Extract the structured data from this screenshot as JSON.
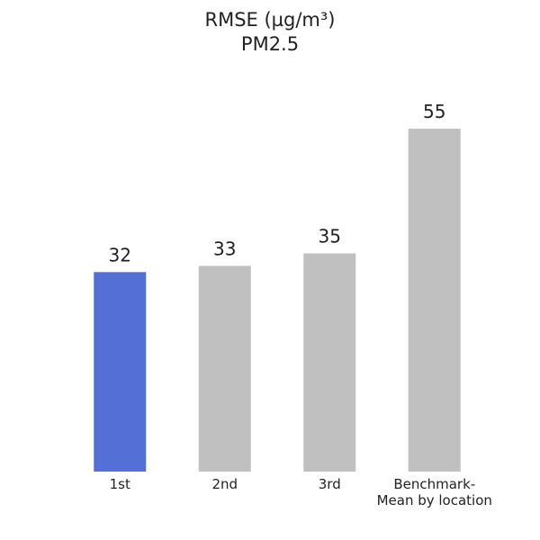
{
  "chart_data": {
    "type": "bar",
    "title": "RMSE (µg/m³)",
    "subtitle": "PM2.5",
    "categories": [
      "1st",
      "2nd",
      "3rd",
      "Benchmark-\nMean by location"
    ],
    "values": [
      32,
      33,
      35,
      55
    ],
    "colors": [
      "#5470d6",
      "#c0c0c0",
      "#c0c0c0",
      "#c0c0c0"
    ]
  }
}
